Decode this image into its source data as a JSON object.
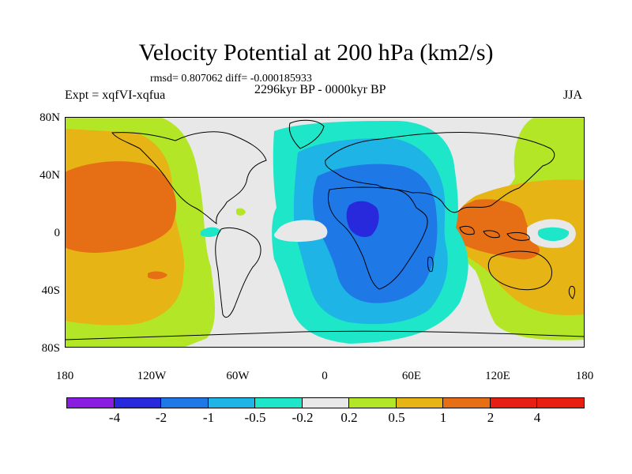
{
  "title": "Velocity Potential at 200 hPa (km2/s)",
  "stats": "rmsd= 0.807062 diff= -0.000185933",
  "expt": "Expt = xqfVI-xqfua",
  "period": "2296kyr BP - 0000kyr BP",
  "season": "JJA",
  "lat_labels": [
    "80N",
    "40N",
    "0",
    "40S",
    "80S"
  ],
  "lon_labels": [
    "180",
    "120W",
    "60W",
    "0",
    "60E",
    "120E",
    "180"
  ],
  "colorbar": {
    "labels": [
      "-4",
      "-2",
      "-1",
      "-0.5",
      "-0.2",
      "0.2",
      "0.5",
      "1",
      "2",
      "4"
    ],
    "colors": [
      "#8a1ee0",
      "#2828dc",
      "#1e78e6",
      "#1eb4e6",
      "#1ee6c8",
      "#e8e8e8",
      "#b4e628",
      "#e6b414",
      "#e66e14",
      "#e61e14"
    ]
  },
  "map_colors": {
    "neutral": "#e8e8e8",
    "neg_02": "#1ee6c8",
    "neg_05": "#1eb4e6",
    "neg_1": "#1e78e6",
    "neg_2": "#2828dc",
    "pos_02": "#b4e628",
    "pos_05": "#e6b414",
    "pos_1": "#e66e14"
  }
}
